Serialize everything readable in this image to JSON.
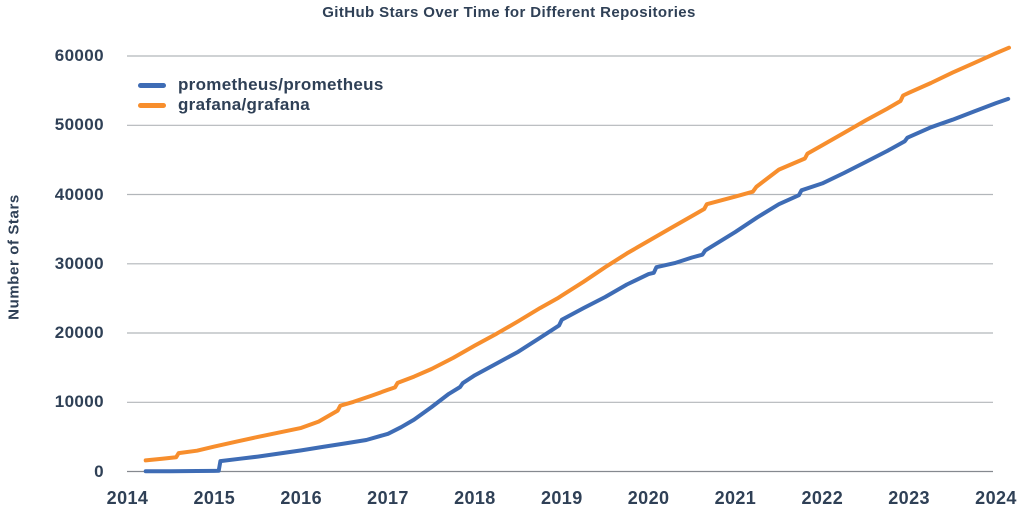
{
  "chart_data": {
    "type": "line",
    "title": "GitHub Stars Over Time for Different Repositories",
    "xlabel": "",
    "ylabel": "Number of Stars",
    "x_ticks": [
      "2014",
      "2015",
      "2016",
      "2017",
      "2018",
      "2019",
      "2020",
      "2021",
      "2022",
      "2023",
      "2024"
    ],
    "y_ticks": [
      0,
      10000,
      20000,
      30000,
      40000,
      50000,
      60000
    ],
    "xlim": [
      2014,
      2024.2
    ],
    "ylim": [
      0,
      62000
    ],
    "grid": "horizontal-only",
    "legend_position": "top-left-inside",
    "colors": {
      "text": "#2f4056",
      "gridline": "#b2b6ba",
      "axis_line": "#85898f",
      "background": "#ffffff"
    },
    "series": [
      {
        "name": "prometheus/prometheus",
        "color": "#3E6CB5",
        "points": [
          [
            2014.21,
            30
          ],
          [
            2014.5,
            50
          ],
          [
            2014.8,
            70
          ],
          [
            2015.0,
            90
          ],
          [
            2015.05,
            100
          ],
          [
            2015.07,
            1500
          ],
          [
            2015.3,
            1850
          ],
          [
            2015.5,
            2150
          ],
          [
            2015.75,
            2600
          ],
          [
            2016.0,
            3050
          ],
          [
            2016.25,
            3550
          ],
          [
            2016.5,
            4050
          ],
          [
            2016.75,
            4550
          ],
          [
            2017.0,
            5450
          ],
          [
            2017.15,
            6400
          ],
          [
            2017.3,
            7500
          ],
          [
            2017.5,
            9300
          ],
          [
            2017.7,
            11200
          ],
          [
            2017.83,
            12200
          ],
          [
            2017.86,
            12750
          ],
          [
            2018.0,
            13900
          ],
          [
            2018.25,
            15600
          ],
          [
            2018.5,
            17300
          ],
          [
            2018.75,
            19300
          ],
          [
            2018.97,
            21100
          ],
          [
            2019.0,
            21900
          ],
          [
            2019.25,
            23600
          ],
          [
            2019.5,
            25200
          ],
          [
            2019.75,
            27000
          ],
          [
            2020.0,
            28500
          ],
          [
            2020.06,
            28700
          ],
          [
            2020.09,
            29500
          ],
          [
            2020.3,
            30100
          ],
          [
            2020.5,
            30900
          ],
          [
            2020.62,
            31300
          ],
          [
            2020.65,
            31900
          ],
          [
            2021.0,
            34600
          ],
          [
            2021.25,
            36700
          ],
          [
            2021.5,
            38600
          ],
          [
            2021.73,
            39900
          ],
          [
            2021.76,
            40600
          ],
          [
            2022.0,
            41600
          ],
          [
            2022.25,
            43100
          ],
          [
            2022.5,
            44700
          ],
          [
            2022.75,
            46300
          ],
          [
            2022.95,
            47700
          ],
          [
            2022.98,
            48200
          ],
          [
            2023.25,
            49700
          ],
          [
            2023.5,
            50800
          ],
          [
            2023.75,
            52000
          ],
          [
            2024.0,
            53200
          ],
          [
            2024.14,
            53800
          ]
        ]
      },
      {
        "name": "grafana/grafana",
        "color": "#F78E2D",
        "points": [
          [
            2014.21,
            1600
          ],
          [
            2014.4,
            1850
          ],
          [
            2014.56,
            2050
          ],
          [
            2014.59,
            2650
          ],
          [
            2014.8,
            3000
          ],
          [
            2015.0,
            3600
          ],
          [
            2015.25,
            4300
          ],
          [
            2015.5,
            5000
          ],
          [
            2015.75,
            5650
          ],
          [
            2016.0,
            6300
          ],
          [
            2016.2,
            7200
          ],
          [
            2016.42,
            8800
          ],
          [
            2016.45,
            9500
          ],
          [
            2016.6,
            10050
          ],
          [
            2016.8,
            10900
          ],
          [
            2017.0,
            11800
          ],
          [
            2017.08,
            12150
          ],
          [
            2017.11,
            12800
          ],
          [
            2017.3,
            13700
          ],
          [
            2017.5,
            14800
          ],
          [
            2017.75,
            16400
          ],
          [
            2018.0,
            18200
          ],
          [
            2018.25,
            19900
          ],
          [
            2018.5,
            21700
          ],
          [
            2018.75,
            23600
          ],
          [
            2018.95,
            25000
          ],
          [
            2019.0,
            25400
          ],
          [
            2019.25,
            27400
          ],
          [
            2019.5,
            29500
          ],
          [
            2019.75,
            31500
          ],
          [
            2020.0,
            33300
          ],
          [
            2020.25,
            35100
          ],
          [
            2020.5,
            36900
          ],
          [
            2020.64,
            37900
          ],
          [
            2020.67,
            38600
          ],
          [
            2021.0,
            39700
          ],
          [
            2021.2,
            40400
          ],
          [
            2021.24,
            41100
          ],
          [
            2021.5,
            43600
          ],
          [
            2021.8,
            45200
          ],
          [
            2021.83,
            45900
          ],
          [
            2022.0,
            47100
          ],
          [
            2022.25,
            48900
          ],
          [
            2022.5,
            50700
          ],
          [
            2022.75,
            52400
          ],
          [
            2022.9,
            53500
          ],
          [
            2022.93,
            54300
          ],
          [
            2023.0,
            54700
          ],
          [
            2023.25,
            56100
          ],
          [
            2023.5,
            57600
          ],
          [
            2023.75,
            59000
          ],
          [
            2024.0,
            60400
          ],
          [
            2024.15,
            61200
          ]
        ]
      }
    ]
  }
}
